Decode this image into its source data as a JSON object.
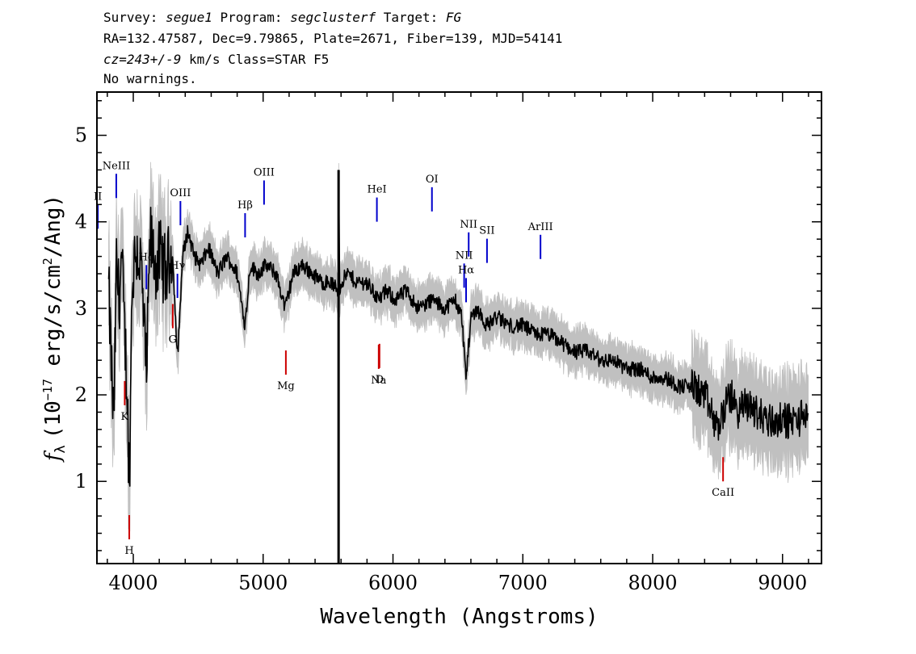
{
  "header": {
    "line1": {
      "survey_label": "Survey: ",
      "survey": "segue1",
      "program_label": " Program: ",
      "program": "segclusterf",
      "target_label": " Target: ",
      "target": "FG"
    },
    "line2": "RA=132.47587, Dec=9.79865, Plate=2671, Fiber=139, MJD=54141",
    "line3": {
      "cz": "cz=243+/-9",
      "rest": " km/s Class=STAR F5"
    },
    "line4": "No warnings."
  },
  "chart_data": {
    "type": "line",
    "title": "",
    "xlabel": "Wavelength (Angstroms)",
    "ylabel": "f_λ (10^-17 erg/s/cm^2/Ang)",
    "ylabel_parts": {
      "f": "f",
      "lambda": "λ",
      "pre": "(10",
      "exp1": "−17",
      "mid": " erg/s/cm",
      "exp2": "2",
      "post": "/Ang)"
    },
    "xlim": [
      3720,
      9300
    ],
    "ylim": [
      0.05,
      5.5
    ],
    "xticks": [
      4000,
      5000,
      6000,
      7000,
      8000,
      9000
    ],
    "yticks": [
      1,
      2,
      3,
      4,
      5
    ],
    "grid": false,
    "colors": {
      "flux": "#000000",
      "error_band": "#c0c0c0",
      "emission_marker": "#0000cc",
      "absorption_marker": "#cc0000"
    },
    "series": [
      {
        "role": "flux",
        "x": [
          3810,
          3830,
          3850,
          3870,
          3890,
          3910,
          3930,
          3950,
          3970,
          3990,
          4020,
          4060,
          4101,
          4130,
          4170,
          4210,
          4250,
          4300,
          4340,
          4380,
          4420,
          4470,
          4520,
          4580,
          4650,
          4720,
          4800,
          4861,
          4900,
          4960,
          5020,
          5100,
          5170,
          5230,
          5300,
          5380,
          5450,
          5520,
          5580,
          5581,
          5590,
          5600,
          5650,
          5720,
          5800,
          5890,
          5950,
          6020,
          6100,
          6200,
          6300,
          6400,
          6480,
          6530,
          6563,
          6600,
          6650,
          6720,
          6800,
          6900,
          7000,
          7100,
          7200,
          7300,
          7400,
          7500,
          7600,
          7700,
          7800,
          7900,
          8000,
          8100,
          8200,
          8300,
          8400,
          8498,
          8542,
          8600,
          8662,
          8720,
          8800,
          8900,
          9000,
          9100,
          9200
        ],
        "y": [
          3.2,
          2.4,
          1.6,
          3.5,
          3.1,
          3.6,
          2.8,
          2.2,
          0.9,
          3.3,
          3.7,
          3.5,
          2.2,
          3.8,
          3.5,
          3.6,
          3.4,
          3.7,
          2.4,
          3.6,
          3.9,
          3.6,
          3.5,
          3.7,
          3.4,
          3.6,
          3.4,
          2.8,
          3.5,
          3.4,
          3.5,
          3.4,
          3.0,
          3.4,
          3.5,
          3.4,
          3.3,
          3.3,
          3.2,
          4.6,
          3.2,
          3.3,
          3.4,
          3.3,
          3.3,
          3.1,
          3.2,
          3.1,
          3.2,
          3.0,
          3.1,
          3.0,
          3.1,
          2.9,
          2.2,
          2.9,
          3.0,
          2.8,
          2.9,
          2.8,
          2.8,
          2.7,
          2.7,
          2.6,
          2.5,
          2.5,
          2.4,
          2.4,
          2.3,
          2.3,
          2.2,
          2.2,
          2.1,
          2.1,
          2.0,
          1.6,
          1.8,
          2.0,
          1.8,
          1.9,
          1.8,
          1.7,
          1.7,
          1.7,
          1.8
        ]
      }
    ],
    "line_labels": {
      "emission": [
        {
          "name": "II",
          "wavelength": 3727
        },
        {
          "name": "NeIII",
          "wavelength": 3869
        },
        {
          "name": "Hδ",
          "wavelength": 4101
        },
        {
          "name": "Hγ",
          "wavelength": 4340
        },
        {
          "name": "OIII",
          "wavelength": 4363
        },
        {
          "name": "Hβ",
          "wavelength": 4861
        },
        {
          "name": "OIII",
          "wavelength": 5007
        },
        {
          "name": "HeI",
          "wavelength": 5876
        },
        {
          "name": "OI",
          "wavelength": 6300
        },
        {
          "name": "NII",
          "wavelength": 6548
        },
        {
          "name": "Hα",
          "wavelength": 6563
        },
        {
          "name": "NII",
          "wavelength": 6583
        },
        {
          "name": "SII",
          "wavelength": 6724
        },
        {
          "name": "ArIII",
          "wavelength": 7136
        }
      ],
      "absorption": [
        {
          "name": "K",
          "wavelength": 3934
        },
        {
          "name": "H",
          "wavelength": 3969
        },
        {
          "name": "G",
          "wavelength": 4304
        },
        {
          "name": "Mg",
          "wavelength": 5175
        },
        {
          "name": "Na",
          "wavelength": 5890
        },
        {
          "name": "D",
          "wavelength": 5896
        },
        {
          "name": "CaII",
          "wavelength": 8542
        }
      ]
    }
  }
}
